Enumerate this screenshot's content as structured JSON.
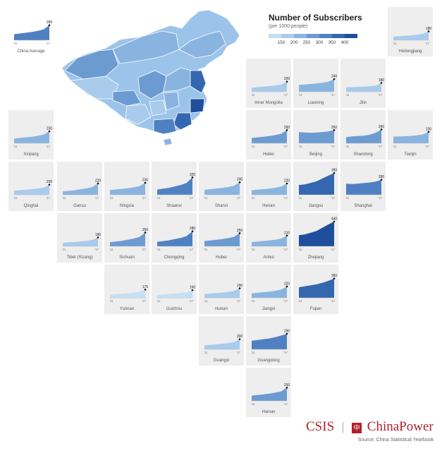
{
  "legend": {
    "title": "Number of Subscribers",
    "subtitle": "(per 1000 people)",
    "ticks": [
      "150",
      "200",
      "250",
      "300",
      "350",
      "400"
    ],
    "colors": [
      "#c6dff4",
      "#a9cbec",
      "#8ab4e0",
      "#6c9bd2",
      "#4f81c2",
      "#3467b0",
      "#1f4f9c"
    ]
  },
  "axis": {
    "start": "'11",
    "end": "'17"
  },
  "branding": {
    "left": "CSIS",
    "sep": "|",
    "mark": "中",
    "right": "ChinaPower"
  },
  "source": "Source: China Statistical Yearbook",
  "chart_data": {
    "type": "area",
    "title": "Number of Subscribers",
    "subtitle": "(per 1000 people)",
    "x_range": [
      "'11",
      "'17"
    ],
    "regions": [
      {
        "name": "China Average",
        "value_2017": "280",
        "level": 280,
        "shape": [
          0.4,
          0.45,
          0.5,
          0.55,
          0.62,
          0.72,
          1.0
        ]
      },
      {
        "name": "Heilongjiang",
        "value_2017": "180",
        "level": 180,
        "shape": [
          0.4,
          0.45,
          0.5,
          0.55,
          0.62,
          0.72,
          1.0
        ]
      },
      {
        "name": "Inner Mongolia",
        "value_2017": "200",
        "level": 200,
        "shape": [
          0.4,
          0.45,
          0.5,
          0.55,
          0.62,
          0.72,
          1.0
        ]
      },
      {
        "name": "Liaoning",
        "value_2017": "240",
        "level": 240,
        "shape": [
          0.55,
          0.58,
          0.62,
          0.66,
          0.72,
          0.8,
          1.0
        ]
      },
      {
        "name": "Jilin",
        "value_2017": "180",
        "level": 180,
        "shape": [
          0.5,
          0.52,
          0.55,
          0.58,
          0.62,
          0.7,
          1.0
        ]
      },
      {
        "name": "Xinjiang",
        "value_2017": "230",
        "level": 230,
        "shape": [
          0.4,
          0.45,
          0.5,
          0.55,
          0.62,
          0.72,
          1.0
        ]
      },
      {
        "name": "Hebei",
        "value_2017": "250",
        "level": 250,
        "shape": [
          0.4,
          0.45,
          0.5,
          0.55,
          0.62,
          0.72,
          1.0
        ]
      },
      {
        "name": "Beijing",
        "value_2017": "250",
        "level": 250,
        "shape": [
          0.85,
          0.82,
          0.8,
          0.82,
          0.85,
          0.9,
          1.0
        ]
      },
      {
        "name": "Shandong",
        "value_2017": "260",
        "level": 260,
        "shape": [
          0.45,
          0.5,
          0.52,
          0.55,
          0.62,
          0.75,
          1.0
        ]
      },
      {
        "name": "Tianjin",
        "value_2017": "220",
        "level": 220,
        "shape": [
          0.6,
          0.6,
          0.62,
          0.65,
          0.7,
          0.78,
          1.0
        ]
      },
      {
        "name": "Qinghai",
        "value_2017": "200",
        "level": 200,
        "shape": [
          0.4,
          0.45,
          0.5,
          0.55,
          0.62,
          0.72,
          1.0
        ]
      },
      {
        "name": "Gansu",
        "value_2017": "220",
        "level": 220,
        "shape": [
          0.3,
          0.35,
          0.4,
          0.48,
          0.56,
          0.68,
          1.0
        ]
      },
      {
        "name": "Ningxia",
        "value_2017": "230",
        "level": 230,
        "shape": [
          0.4,
          0.45,
          0.5,
          0.55,
          0.62,
          0.72,
          1.0
        ]
      },
      {
        "name": "Shaanxi",
        "value_2017": "320",
        "level": 320,
        "shape": [
          0.3,
          0.35,
          0.4,
          0.48,
          0.56,
          0.68,
          1.0
        ]
      },
      {
        "name": "Shanxi",
        "value_2017": "240",
        "level": 240,
        "shape": [
          0.4,
          0.45,
          0.5,
          0.55,
          0.62,
          0.72,
          1.0
        ]
      },
      {
        "name": "Henan",
        "value_2017": "220",
        "level": 220,
        "shape": [
          0.4,
          0.45,
          0.5,
          0.55,
          0.62,
          0.72,
          1.0
        ]
      },
      {
        "name": "Jiangsu",
        "value_2017": "390",
        "level": 390,
        "shape": [
          0.45,
          0.48,
          0.55,
          0.62,
          0.75,
          0.88,
          1.0
        ]
      },
      {
        "name": "Shanghai",
        "value_2017": "280",
        "level": 280,
        "shape": [
          0.75,
          0.72,
          0.75,
          0.78,
          0.82,
          0.88,
          1.0
        ]
      },
      {
        "name": "Tibet (Xizang)",
        "value_2017": "180",
        "level": 180,
        "shape": [
          0.4,
          0.45,
          0.5,
          0.55,
          0.62,
          0.72,
          1.0
        ]
      },
      {
        "name": "Sichuan",
        "value_2017": "260",
        "level": 260,
        "shape": [
          0.3,
          0.35,
          0.4,
          0.48,
          0.56,
          0.68,
          1.0
        ]
      },
      {
        "name": "Chongqing",
        "value_2017": "280",
        "level": 280,
        "shape": [
          0.3,
          0.35,
          0.4,
          0.48,
          0.56,
          0.68,
          1.0
        ]
      },
      {
        "name": "Hubei",
        "value_2017": "250",
        "level": 250,
        "shape": [
          0.4,
          0.45,
          0.5,
          0.55,
          0.62,
          0.72,
          1.0
        ]
      },
      {
        "name": "Anhui",
        "value_2017": "210",
        "level": 210,
        "shape": [
          0.4,
          0.45,
          0.5,
          0.55,
          0.62,
          0.72,
          1.0
        ]
      },
      {
        "name": "Zhejiang",
        "value_2017": "440",
        "level": 440,
        "shape": [
          0.45,
          0.48,
          0.55,
          0.62,
          0.75,
          0.88,
          1.0
        ]
      },
      {
        "name": "Yunnan",
        "value_2017": "170",
        "level": 170,
        "shape": [
          0.4,
          0.45,
          0.5,
          0.55,
          0.62,
          0.72,
          1.0
        ]
      },
      {
        "name": "Guizhou",
        "value_2017": "160",
        "level": 160,
        "shape": [
          0.4,
          0.45,
          0.5,
          0.55,
          0.62,
          0.72,
          1.0
        ]
      },
      {
        "name": "Hunan",
        "value_2017": "190",
        "level": 190,
        "shape": [
          0.4,
          0.45,
          0.5,
          0.55,
          0.62,
          0.72,
          1.0
        ]
      },
      {
        "name": "Jiangxi",
        "value_2017": "220",
        "level": 220,
        "shape": [
          0.4,
          0.45,
          0.5,
          0.55,
          0.62,
          0.72,
          1.0
        ]
      },
      {
        "name": "Fujian",
        "value_2017": "350",
        "level": 350,
        "shape": [
          0.55,
          0.6,
          0.65,
          0.7,
          0.78,
          0.88,
          1.0
        ]
      },
      {
        "name": "Guangxi",
        "value_2017": "200",
        "level": 200,
        "shape": [
          0.4,
          0.45,
          0.5,
          0.55,
          0.62,
          0.72,
          1.0
        ]
      },
      {
        "name": "Guangdong",
        "value_2017": "290",
        "level": 290,
        "shape": [
          0.55,
          0.6,
          0.65,
          0.7,
          0.78,
          0.88,
          1.0
        ]
      },
      {
        "name": "Hainan",
        "value_2017": "250",
        "level": 250,
        "shape": [
          0.4,
          0.45,
          0.5,
          0.55,
          0.62,
          0.72,
          1.0
        ]
      }
    ]
  }
}
